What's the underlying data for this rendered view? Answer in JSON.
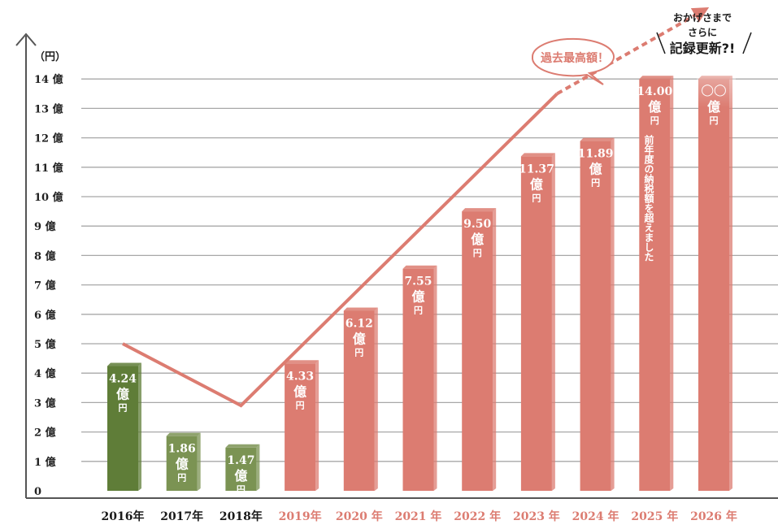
{
  "chart_data": {
    "type": "bar",
    "ylabel": "（円）",
    "y_unit": "億",
    "ylim": [
      0,
      14
    ],
    "yticks": [
      "0",
      "1 億",
      "2 億",
      "3 億",
      "4 億",
      "5 億",
      "6 億",
      "7 億",
      "8 億",
      "9 億",
      "10 億",
      "11 億",
      "12 億",
      "13 億",
      "14 億"
    ],
    "categories": [
      "2016年",
      "2017年",
      "2018年",
      "2019年",
      "2020 年",
      "2021 年",
      "2022 年",
      "2023 年",
      "2024 年",
      "2025 年",
      "2026 年"
    ],
    "values": [
      4.24,
      1.86,
      1.47,
      4.33,
      6.12,
      7.55,
      9.5,
      11.37,
      11.89,
      14.0,
      14.0
    ],
    "value_labels": [
      "4.24",
      "1.86",
      "1.47",
      "4.33",
      "6.12",
      "7.55",
      "9.50",
      "11.37",
      "11.89",
      "14.00",
      "◯◯"
    ],
    "oku_label": "億",
    "yen_label": "円",
    "bar_colors": [
      "#5f7d38",
      "#7b9353",
      "#7b9353",
      "#dc7c71",
      "#dc7c71",
      "#dc7c71",
      "#dc7c71",
      "#dc7c71",
      "#dc7c71",
      "#dc7c71",
      "#dc7c71"
    ],
    "x_label_colors": [
      "#1a1a1a",
      "#1a1a1a",
      "#1a1a1a",
      "#dc7c71",
      "#dc7c71",
      "#dc7c71",
      "#dc7c71",
      "#dc7c71",
      "#dc7c71",
      "#dc7c71",
      "#dc7c71"
    ],
    "trend_line": {
      "color": "#dc7c71",
      "points": [
        [
          0,
          5.0
        ],
        [
          2,
          2.9
        ],
        [
          7.35,
          13.5
        ]
      ],
      "dashed_to": [
        9.8,
        16.3
      ]
    },
    "annotations": {
      "bubble": "過去最高額！",
      "bar_2025_vertical": "前年度の納税額を超えました",
      "top_note": [
        "おかげさまで",
        "さらに",
        "記録更新?!"
      ]
    },
    "grid": true
  }
}
